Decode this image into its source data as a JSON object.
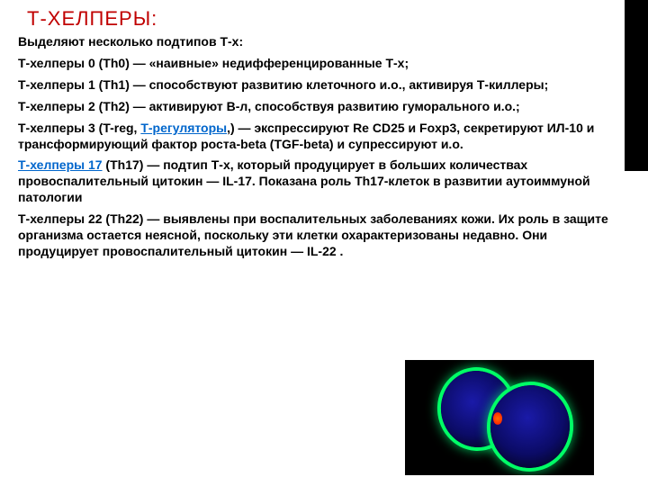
{
  "title": "Т-ХЕЛПЕРЫ:",
  "paragraphs": {
    "p0": "Выделяют несколько подтипов Т-х:",
    "p1": "Т-хелперы 0 (Th0) — «наивные» недифференцированные Т-х;",
    "p2": "Т-хелперы 1 (Th1) — способствуют развитию клеточного и.о., активируя Т-киллеры;",
    "p3": "Т-хелперы 2 (Th2) — активируют В-л, способствуя развитию гуморального и.о.;",
    "p4_a": "Т-хелперы 3 (T-reg, ",
    "p4_link": "Т-регуляторы",
    "p4_b": ",) — экспрессируют Re CD25 и Foxp3, секретируют ИЛ-10 и трансформирующий фактор роста-beta (TGF-beta) и супрессируют и.о.",
    "p5_link": "Т-хелперы 17",
    "p5_b": " (Th17) — подтип Т-х, который  продуцирует в больших количествах провоспалительный цитокин — IL-17. Показана роль Th17-клеток в развитии аутоиммуной патологии",
    "p6": "Т-хелперы 22 (Th22) — выявлены при воспалительных заболеваниях кожи. Их роль в защите организма остается неясной, поскольку эти клетки охарактеризованы недавно. Они продуцирует провоспалительный цитокин — IL-22 ."
  },
  "colors": {
    "title": "#c00000",
    "link": "#0066cc",
    "strip": "#000000",
    "bg": "#ffffff"
  }
}
